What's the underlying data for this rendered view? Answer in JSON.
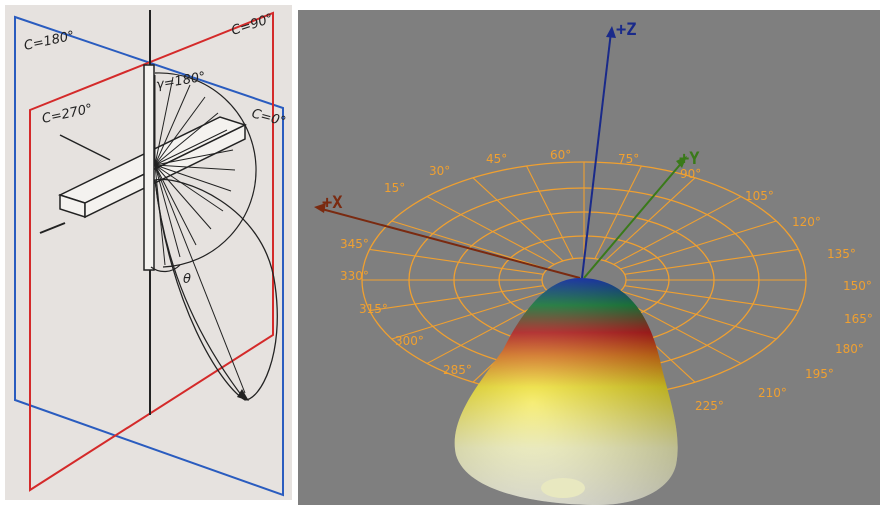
{
  "left_diagram": {
    "plane_labels": [
      "C=180°",
      "C=90°",
      "C=270°",
      "C=0°"
    ],
    "gamma_label": "γ=180°",
    "theta_label": "θ"
  },
  "right_render": {
    "axes": {
      "x": "+X",
      "y": "+Y",
      "z": "+Z"
    },
    "angle_labels": [
      "30°",
      "45°",
      "60°",
      "75°",
      "90°",
      "105°",
      "120°",
      "135°",
      "150°",
      "165°",
      "180°",
      "195°",
      "210°",
      "225°",
      "15°",
      "345°",
      "330°",
      "315°",
      "300°",
      "285°"
    ],
    "colors": {
      "grid": "#f0a030",
      "x_axis": "#7a2a10",
      "y_axis": "#3a7a1a",
      "z_axis": "#1a2a8a",
      "lobe_top": "#1a3acc",
      "lobe_mid": "#c01818",
      "lobe_low": "#f0e020",
      "lobe_base": "#fffff0"
    }
  }
}
